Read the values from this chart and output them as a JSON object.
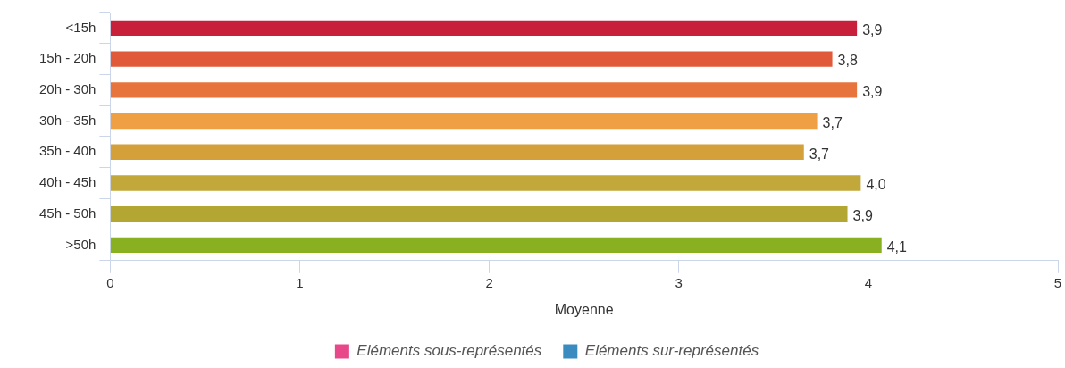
{
  "chart_data": {
    "type": "bar",
    "orientation": "horizontal",
    "xlabel": "Moyenne",
    "categories": [
      "<15h",
      "15h - 20h",
      "20h - 30h",
      "30h - 35h",
      "35h - 40h",
      "40h - 45h",
      "45h - 50h",
      ">50h"
    ],
    "series": [
      {
        "colors": [
          "#c8203a",
          "#e05a3a",
          "#e6743c",
          "#f0a044",
          "#d4a03a",
          "#c2a83a",
          "#b4a632",
          "#88b020"
        ],
        "values": [
          3.94,
          3.81,
          3.94,
          3.73,
          3.66,
          3.96,
          3.89,
          4.07
        ],
        "value_labels": [
          "3,9",
          "3,8",
          "3,9",
          "3,7",
          "3,7",
          "4,0",
          "3,9",
          "4,1"
        ]
      },
      {
        "name": "Eléments sous-représentés",
        "color": "#e8488a",
        "values": [
          null,
          null,
          null,
          null,
          null,
          null,
          null,
          null
        ]
      },
      {
        "name": "Eléments sur-représentés",
        "color": "#3a8bbf",
        "values": [
          null,
          null,
          null,
          null,
          null,
          null,
          null,
          null
        ]
      }
    ],
    "xlim": [
      0,
      5
    ],
    "xticks": [
      0,
      1,
      2,
      3,
      4,
      5
    ],
    "grid": false,
    "legend": "bottom"
  }
}
